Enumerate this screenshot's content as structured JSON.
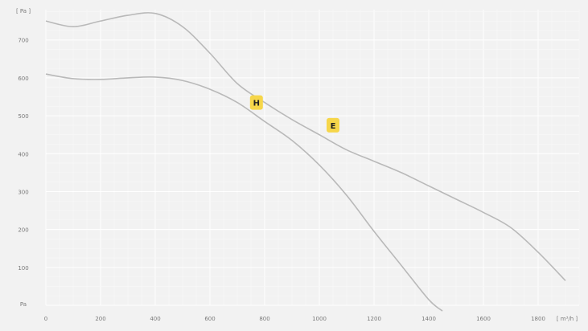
{
  "chart_data": {
    "type": "line",
    "x_unit_label": "[ m³/h ]",
    "y_unit_label": "[ Pa ]",
    "y_zero_label": "Pa",
    "xlim": [
      0,
      1950
    ],
    "ylim": [
      0,
      780
    ],
    "x_ticks": [
      0,
      200,
      400,
      600,
      800,
      1000,
      1200,
      1400,
      1600,
      1800
    ],
    "x_tick_labels": [
      "0",
      "200",
      "400",
      "600",
      "800",
      "1000",
      "1200",
      "1400",
      "1600",
      "1800"
    ],
    "y_ticks": [
      100,
      200,
      300,
      400,
      500,
      600,
      700
    ],
    "y_tick_labels": [
      "100",
      "200",
      "300",
      "400",
      "500",
      "600",
      "700"
    ],
    "grid": true,
    "series": [
      {
        "color": "#b9b9b9",
        "x": [
          0,
          100,
          200,
          300,
          400,
          500,
          600,
          700,
          800,
          900,
          1000,
          1100,
          1200,
          1300,
          1400,
          1500,
          1600,
          1700,
          1800,
          1900
        ],
        "y": [
          750,
          735,
          750,
          765,
          770,
          735,
          665,
          585,
          535,
          490,
          450,
          410,
          380,
          350,
          315,
          280,
          245,
          205,
          140,
          65
        ]
      },
      {
        "color": "#b9b9b9",
        "x": [
          0,
          100,
          200,
          300,
          400,
          500,
          600,
          700,
          800,
          900,
          1000,
          1100,
          1200,
          1300,
          1400,
          1450
        ],
        "y": [
          610,
          598,
          596,
          600,
          602,
          593,
          570,
          535,
          485,
          435,
          370,
          290,
          195,
          105,
          15,
          -15
        ]
      }
    ],
    "markers": [
      {
        "label": "H",
        "x": 770,
        "y": 535,
        "color": "#f6d64a"
      },
      {
        "label": "E",
        "x": 1050,
        "y": 475,
        "color": "#f6d64a"
      }
    ]
  }
}
